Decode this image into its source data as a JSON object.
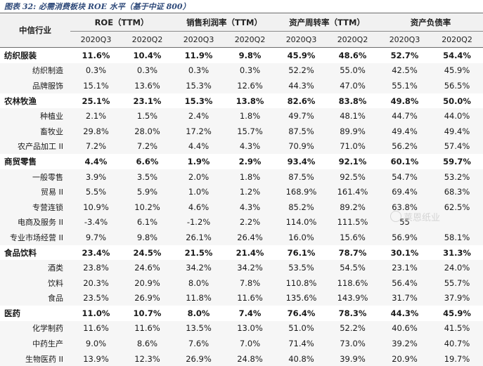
{
  "caption": "图表 32: 必需消费板块 ROE 水平（基于中证 800）",
  "header": {
    "corner": "中信行业",
    "groups": [
      "ROE（TTM）",
      "销售利润率（TTM）",
      "资产周转率（TTM）",
      "资产负债率"
    ],
    "periods": [
      "2020Q3",
      "2020Q2",
      "2020Q3",
      "2020Q2",
      "2020Q3",
      "2020Q2",
      "2020Q3",
      "2020Q2"
    ]
  },
  "rows": [
    {
      "name": "纺织服装",
      "type": "sector",
      "values": [
        "11.6%",
        "10.4%",
        "11.9%",
        "9.8%",
        "45.9%",
        "48.6%",
        "52.7%",
        "54.4%"
      ]
    },
    {
      "name": "纺织制造",
      "type": "sub",
      "values": [
        "0.3%",
        "0.3%",
        "0.3%",
        "0.3%",
        "52.2%",
        "55.0%",
        "42.5%",
        "45.9%"
      ]
    },
    {
      "name": "品牌服饰",
      "type": "sub",
      "values": [
        "15.1%",
        "13.6%",
        "15.3%",
        "12.6%",
        "44.3%",
        "47.0%",
        "55.1%",
        "56.5%"
      ]
    },
    {
      "name": "农林牧渔",
      "type": "sector",
      "values": [
        "25.1%",
        "23.1%",
        "15.3%",
        "13.8%",
        "82.6%",
        "83.8%",
        "49.8%",
        "50.0%"
      ]
    },
    {
      "name": "种植业",
      "type": "sub",
      "values": [
        "2.1%",
        "1.5%",
        "2.4%",
        "1.8%",
        "49.7%",
        "48.1%",
        "44.7%",
        "44.0%"
      ]
    },
    {
      "name": "畜牧业",
      "type": "sub",
      "values": [
        "29.8%",
        "28.0%",
        "17.2%",
        "15.7%",
        "87.5%",
        "89.9%",
        "49.4%",
        "49.4%"
      ]
    },
    {
      "name": "农产品加工 II",
      "type": "sub",
      "values": [
        "7.2%",
        "7.2%",
        "4.4%",
        "4.3%",
        "70.9%",
        "71.0%",
        "56.2%",
        "57.4%"
      ]
    },
    {
      "name": "商贸零售",
      "type": "sector",
      "values": [
        "4.4%",
        "6.6%",
        "1.9%",
        "2.9%",
        "93.4%",
        "92.1%",
        "60.1%",
        "59.7%"
      ]
    },
    {
      "name": "一般零售",
      "type": "sub",
      "values": [
        "3.9%",
        "3.5%",
        "2.0%",
        "1.8%",
        "87.5%",
        "92.5%",
        "54.7%",
        "53.2%"
      ]
    },
    {
      "name": "贸易 II",
      "type": "sub",
      "values": [
        "5.5%",
        "5.9%",
        "1.0%",
        "1.2%",
        "168.9%",
        "161.4%",
        "69.4%",
        "68.3%"
      ]
    },
    {
      "name": "专营连锁",
      "type": "sub",
      "values": [
        "10.9%",
        "10.2%",
        "4.6%",
        "4.3%",
        "85.2%",
        "89.2%",
        "63.8%",
        "62.5%"
      ]
    },
    {
      "name": "电商及服务 II",
      "type": "sub",
      "values": [
        "-3.4%",
        "6.1%",
        "-1.2%",
        "2.2%",
        "114.0%",
        "111.5%",
        "55",
        ""
      ]
    },
    {
      "name": "专业市场经营 II",
      "type": "sub",
      "values": [
        "9.7%",
        "9.8%",
        "26.1%",
        "26.4%",
        "16.0%",
        "15.6%",
        "56.9%",
        "58.1%"
      ]
    },
    {
      "name": "食品饮料",
      "type": "sector",
      "values": [
        "23.4%",
        "24.5%",
        "21.5%",
        "21.4%",
        "76.1%",
        "78.7%",
        "30.1%",
        "31.3%"
      ]
    },
    {
      "name": "酒类",
      "type": "sub",
      "values": [
        "23.8%",
        "24.6%",
        "34.2%",
        "34.2%",
        "53.5%",
        "54.5%",
        "23.1%",
        "24.0%"
      ]
    },
    {
      "name": "饮料",
      "type": "sub",
      "values": [
        "20.3%",
        "20.9%",
        "8.0%",
        "7.8%",
        "110.8%",
        "118.6%",
        "56.4%",
        "55.7%"
      ]
    },
    {
      "name": "食品",
      "type": "sub",
      "values": [
        "23.5%",
        "26.9%",
        "11.8%",
        "11.6%",
        "135.6%",
        "143.9%",
        "31.7%",
        "37.9%"
      ]
    },
    {
      "name": "医药",
      "type": "sector",
      "values": [
        "11.0%",
        "10.7%",
        "8.0%",
        "7.4%",
        "76.4%",
        "78.3%",
        "44.3%",
        "45.9%"
      ]
    },
    {
      "name": "化学制药",
      "type": "sub",
      "values": [
        "11.6%",
        "11.6%",
        "13.5%",
        "13.0%",
        "51.0%",
        "52.2%",
        "40.6%",
        "41.5%"
      ]
    },
    {
      "name": "中药生产",
      "type": "sub",
      "values": [
        "9.0%",
        "8.6%",
        "7.6%",
        "7.0%",
        "71.4%",
        "73.0%",
        "39.2%",
        "40.7%"
      ]
    },
    {
      "name": "生物医药 II",
      "type": "sub",
      "values": [
        "13.9%",
        "12.3%",
        "26.9%",
        "24.8%",
        "40.8%",
        "39.9%",
        "20.9%",
        "19.7%"
      ]
    }
  ],
  "watermark": "莱恩纸业"
}
